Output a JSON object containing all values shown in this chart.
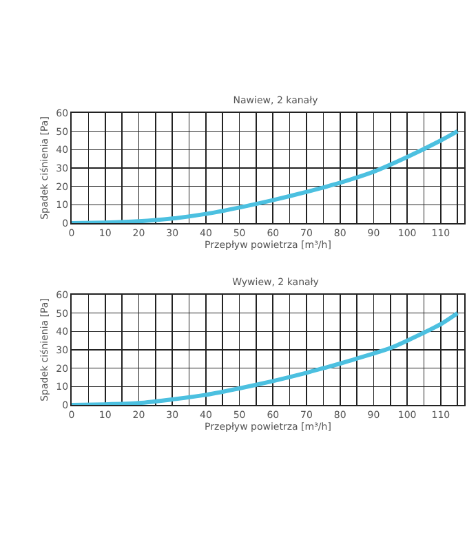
{
  "chart_data": [
    {
      "type": "line",
      "title": "Nawiew, 2 kanały",
      "xlabel": "Przepływ powietrza [m³/h]",
      "ylabel": "Spadek ciśnienia [Pa]",
      "x": [
        0,
        10,
        20,
        30,
        40,
        50,
        60,
        70,
        80,
        90,
        100,
        110,
        115
      ],
      "series": [
        {
          "color": "#4cc0e0",
          "values": [
            0,
            0.3,
            1,
            2.5,
            5,
            8.5,
            12.5,
            17,
            22,
            28,
            36,
            45,
            50
          ]
        }
      ],
      "xlim": [
        0,
        117
      ],
      "ylim": [
        0,
        60
      ],
      "xticks": [
        0,
        {
          "value": 5,
          "label": null
        },
        10,
        {
          "value": 15,
          "label": null
        },
        20,
        {
          "value": 25,
          "label": null
        },
        30,
        {
          "value": 35,
          "label": null
        },
        40,
        {
          "value": 45,
          "label": null
        },
        50,
        {
          "value": 55,
          "label": null
        },
        60,
        {
          "value": 65,
          "label": null
        },
        70,
        {
          "value": 75,
          "label": null
        },
        80,
        {
          "value": 85,
          "label": null
        },
        90,
        {
          "value": 95,
          "label": null
        },
        100,
        {
          "value": 105,
          "label": null
        },
        110,
        {
          "value": 115,
          "label": null
        }
      ],
      "yticks": [
        0,
        10,
        20,
        30,
        40,
        50,
        60
      ],
      "grid": true,
      "marker": "none",
      "line_style": "solid"
    },
    {
      "type": "line",
      "title": "Wywiew, 2 kanały",
      "xlabel": "Przepływ powietrza [m³/h]",
      "ylabel": "Spadek ciśnienia [Pa]",
      "x": [
        0,
        10,
        20,
        30,
        40,
        50,
        60,
        70,
        75,
        80,
        90,
        95,
        100,
        110,
        115
      ],
      "series": [
        {
          "color": "#4cc0e0",
          "values": [
            0,
            0.3,
            1,
            3,
            5.5,
            9,
            13,
            17.5,
            20,
            22.5,
            28,
            31,
            35,
            44,
            50
          ]
        }
      ],
      "xlim": [
        0,
        117
      ],
      "ylim": [
        0,
        60
      ],
      "xticks": [
        0,
        {
          "value": 5,
          "label": null
        },
        10,
        {
          "value": 15,
          "label": null
        },
        20,
        {
          "value": 25,
          "label": null
        },
        30,
        {
          "value": 35,
          "label": null
        },
        40,
        {
          "value": 45,
          "label": null
        },
        50,
        {
          "value": 55,
          "label": null
        },
        60,
        {
          "value": 65,
          "label": null
        },
        70,
        {
          "value": 75,
          "label": null
        },
        80,
        {
          "value": 85,
          "label": null
        },
        90,
        {
          "value": 95,
          "label": null
        },
        100,
        {
          "value": 105,
          "label": null
        },
        110,
        {
          "value": 115,
          "label": null
        }
      ],
      "yticks": [
        0,
        10,
        20,
        30,
        40,
        50,
        60
      ],
      "grid": true,
      "marker": "none",
      "line_style": "solid"
    }
  ]
}
